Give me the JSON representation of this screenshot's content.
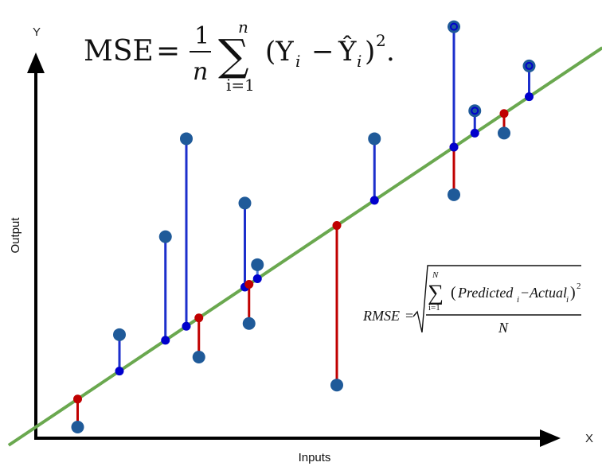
{
  "axes": {
    "y_letter": "Y",
    "x_letter": "X",
    "y_title": "Output",
    "x_title": "Inputs"
  },
  "formulas": {
    "mse": {
      "lhs": "MSE",
      "equals": "=",
      "frac_num": "1",
      "frac_den": "n",
      "sum_top": "n",
      "sum_bottom": "i=1",
      "body": "(Y",
      "sub_i": "i",
      "minus": "−",
      "yhat": "Ŷ",
      "sub_i2": "i",
      "close": ")",
      "sq": "2",
      "dot": "."
    },
    "rmse": {
      "lhs": "RMSE",
      "equals": "=",
      "sum_top": "N",
      "sum_bottom": "i=1",
      "term_open": "(",
      "predicted": "Predicted",
      "p_sub": "i",
      "minus": "−",
      "actual": "Actual",
      "a_sub": "i",
      "term_close": ")",
      "sq": "2",
      "denominator": "N"
    }
  },
  "colors": {
    "background": "#ffffff",
    "axis": "#000000",
    "regression_line": "#6aa84f",
    "observed_point": "#1f5a99",
    "predicted_point": "#0000cc",
    "residual_positive": "#1c2fcc",
    "residual_negative": "#c00000",
    "residual_light": "#4a7ad9"
  },
  "chart_data": {
    "type": "scatter",
    "regression_line": {
      "slope": 1.0,
      "intercept": 0.0
    },
    "points": [
      {
        "x": 1.0,
        "y": 0.0,
        "sign": "negative"
      },
      {
        "x": 2.0,
        "y": 3.3,
        "sign": "positive"
      },
      {
        "x": 3.1,
        "y": 6.8,
        "sign": "positive"
      },
      {
        "x": 3.6,
        "y": 10.3,
        "sign": "positive"
      },
      {
        "x": 3.9,
        "y": 2.5,
        "sign": "negative"
      },
      {
        "x": 5.0,
        "y": 8.0,
        "sign": "positive"
      },
      {
        "x": 5.1,
        "y": 3.7,
        "sign": "negative"
      },
      {
        "x": 5.3,
        "y": 5.8,
        "sign": "positive",
        "light": true
      },
      {
        "x": 7.2,
        "y": 1.5,
        "sign": "negative"
      },
      {
        "x": 8.1,
        "y": 10.3,
        "sign": "positive"
      },
      {
        "x": 10.0,
        "y": 8.3,
        "sign": "negative"
      },
      {
        "x": 10.0,
        "y": 14.3,
        "sign": "positive",
        "ring": true
      },
      {
        "x": 10.5,
        "y": 11.3,
        "sign": "positive",
        "ring": true
      },
      {
        "x": 11.2,
        "y": 10.5,
        "sign": "negative"
      },
      {
        "x": 11.8,
        "y": 12.9,
        "sign": "positive",
        "ring": true
      }
    ]
  }
}
